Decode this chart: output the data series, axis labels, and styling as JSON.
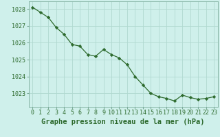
{
  "x": [
    0,
    1,
    2,
    3,
    4,
    5,
    6,
    7,
    8,
    9,
    10,
    11,
    12,
    13,
    14,
    15,
    16,
    17,
    18,
    19,
    20,
    21,
    22,
    23
  ],
  "y": [
    1028.1,
    1027.8,
    1027.5,
    1026.9,
    1026.5,
    1025.9,
    1025.8,
    1025.3,
    1025.2,
    1025.6,
    1025.3,
    1025.1,
    1024.7,
    1024.0,
    1023.5,
    1023.0,
    1022.8,
    1022.7,
    1022.55,
    1022.9,
    1022.75,
    1022.65,
    1022.7,
    1022.8
  ],
  "line_color": "#2d6a2d",
  "marker": "D",
  "marker_size": 2.2,
  "bg_color": "#cff0eb",
  "grid_color": "#b0d9d0",
  "xlabel": "Graphe pression niveau de la mer (hPa)",
  "xlabel_fontsize": 7.5,
  "tick_fontsize": 6.0,
  "ylabel_ticks": [
    1023,
    1024,
    1025,
    1026,
    1027,
    1028
  ],
  "ylim": [
    1022.2,
    1028.45
  ],
  "xlim": [
    -0.5,
    23.5
  ],
  "xtick_labels": [
    "0",
    "1",
    "2",
    "3",
    "4",
    "5",
    "6",
    "7",
    "8",
    "9",
    "10",
    "11",
    "12",
    "13",
    "14",
    "15",
    "16",
    "17",
    "18",
    "19",
    "20",
    "21",
    "22",
    "23"
  ]
}
